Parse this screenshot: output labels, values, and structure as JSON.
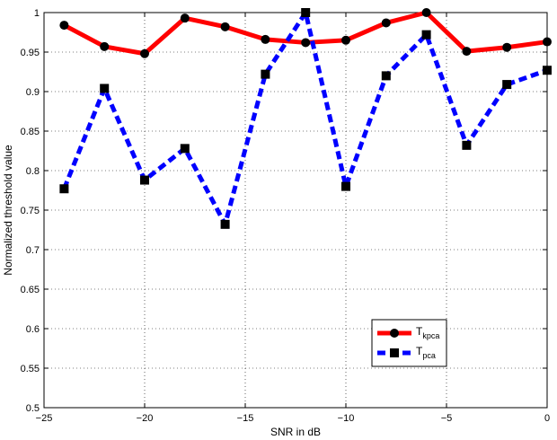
{
  "chart_data": {
    "type": "line",
    "title": "",
    "xlabel": "SNR in dB",
    "ylabel": "Normalized threshold value",
    "xlim": [
      -25,
      0
    ],
    "ylim": [
      0.5,
      1
    ],
    "xticks": [
      -25,
      -20,
      -15,
      -10,
      -5,
      0
    ],
    "xtick_labels": [
      "−25",
      "−20",
      "−15",
      "−10",
      "−5",
      "0"
    ],
    "yticks": [
      0.5,
      0.55,
      0.6,
      0.65,
      0.7,
      0.75,
      0.8,
      0.85,
      0.9,
      0.95,
      1
    ],
    "ytick_labels": [
      "0.5",
      "0.55",
      "0.6",
      "0.65",
      "0.7",
      "0.75",
      "0.8",
      "0.85",
      "0.9",
      "0.95",
      "1"
    ],
    "grid": true,
    "legend_position": "bottom-right",
    "x": [
      -24,
      -22,
      -20,
      -18,
      -16,
      -14,
      -12,
      -10,
      -8,
      -6,
      -4,
      -2,
      0
    ],
    "series": [
      {
        "name_main": "T",
        "name_sub": "kpca",
        "color": "#ff0000",
        "line_style": "solid",
        "marker": "circle",
        "values": [
          0.984,
          0.957,
          0.948,
          0.993,
          0.982,
          0.966,
          0.962,
          0.965,
          0.987,
          1.0,
          0.951,
          0.956,
          0.963
        ]
      },
      {
        "name_main": "T",
        "name_sub": "pca",
        "color": "#0000ff",
        "line_style": "dashed",
        "marker": "square",
        "values": [
          0.777,
          0.904,
          0.788,
          0.828,
          0.732,
          0.922,
          1.0,
          0.78,
          0.92,
          0.972,
          0.832,
          0.909,
          0.927
        ]
      }
    ]
  }
}
